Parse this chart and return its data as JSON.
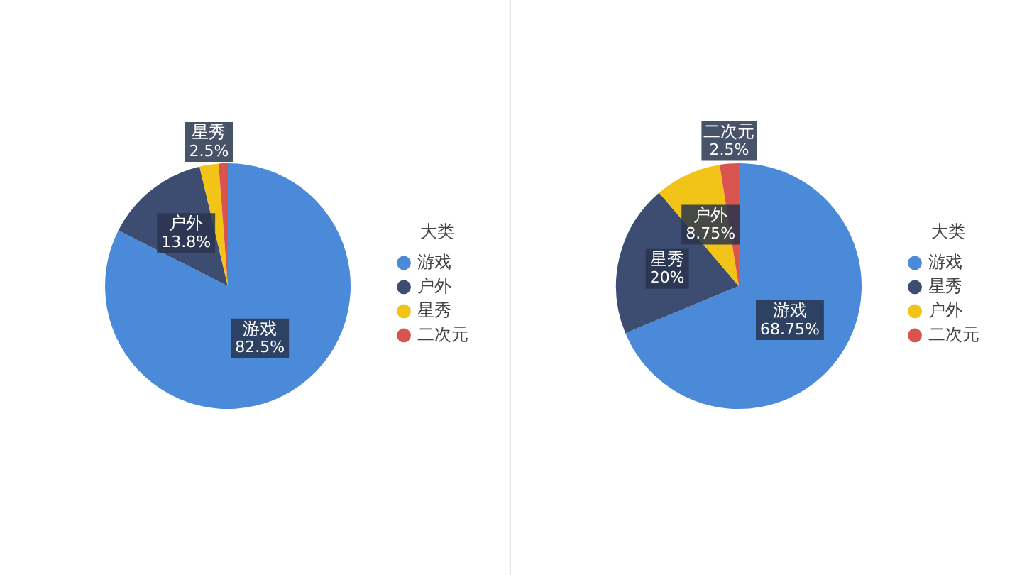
{
  "chart_data": [
    {
      "type": "pie",
      "legend_title": "大类",
      "legend": "right",
      "categories": [
        "游戏",
        "户外",
        "星秀",
        "二次元"
      ],
      "values": [
        82.5,
        13.8,
        2.5,
        1.2
      ],
      "colors": [
        "#4a8ad8",
        "#3d4d72",
        "#f2c418",
        "#d9544f"
      ],
      "value_labels": [
        "82.5%",
        "13.8%",
        "2.5%",
        null
      ]
    },
    {
      "type": "pie",
      "legend_title": "大类",
      "legend": "right",
      "categories": [
        "游戏",
        "星秀",
        "户外",
        "二次元"
      ],
      "values": [
        68.75,
        20,
        8.75,
        2.5
      ],
      "colors": [
        "#4a8ad8",
        "#3d4d72",
        "#f2c418",
        "#d9544f"
      ],
      "value_labels": [
        "68.75%",
        "20%",
        "8.75%",
        "2.5%"
      ]
    }
  ]
}
